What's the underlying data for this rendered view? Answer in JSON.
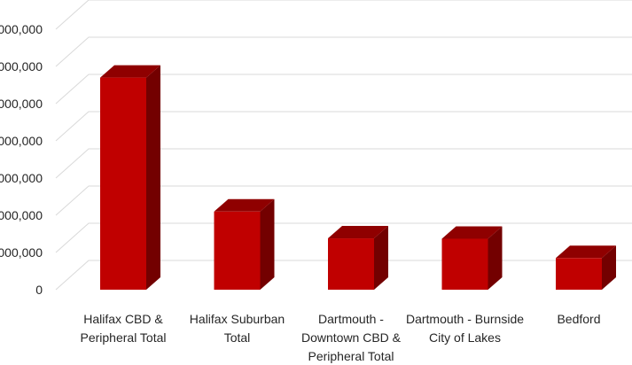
{
  "chart_data": {
    "type": "bar",
    "style": "3d-column",
    "title": "",
    "xlabel": "",
    "ylabel": "",
    "ylim": [
      0,
      7000000
    ],
    "grid": true,
    "legend": "none",
    "y_ticks": [
      {
        "value": 0,
        "label": "0"
      },
      {
        "value": 1000000,
        "label": ",000,000"
      },
      {
        "value": 2000000,
        "label": ",000,000"
      },
      {
        "value": 3000000,
        "label": ",000,000"
      },
      {
        "value": 4000000,
        "label": ",000,000"
      },
      {
        "value": 5000000,
        "label": ",000,000"
      },
      {
        "value": 6000000,
        "label": ",000,000"
      },
      {
        "value": 7000000,
        "label": ",000,000"
      }
    ],
    "categories": [
      [
        "Halifax CBD &",
        "Peripheral Total"
      ],
      [
        "Halifax Suburban",
        "Total"
      ],
      [
        "Dartmouth -",
        "Downtown CBD &",
        "Peripheral Total"
      ],
      [
        "Dartmouth - Burnside",
        "City of Lakes"
      ],
      [
        "Bedford"
      ]
    ],
    "values": [
      5700000,
      2100000,
      1380000,
      1370000,
      850000
    ],
    "colors": {
      "front": "#c00000",
      "top": "#8f0000",
      "side": "#730000",
      "grid": "#d9d9d9"
    }
  }
}
